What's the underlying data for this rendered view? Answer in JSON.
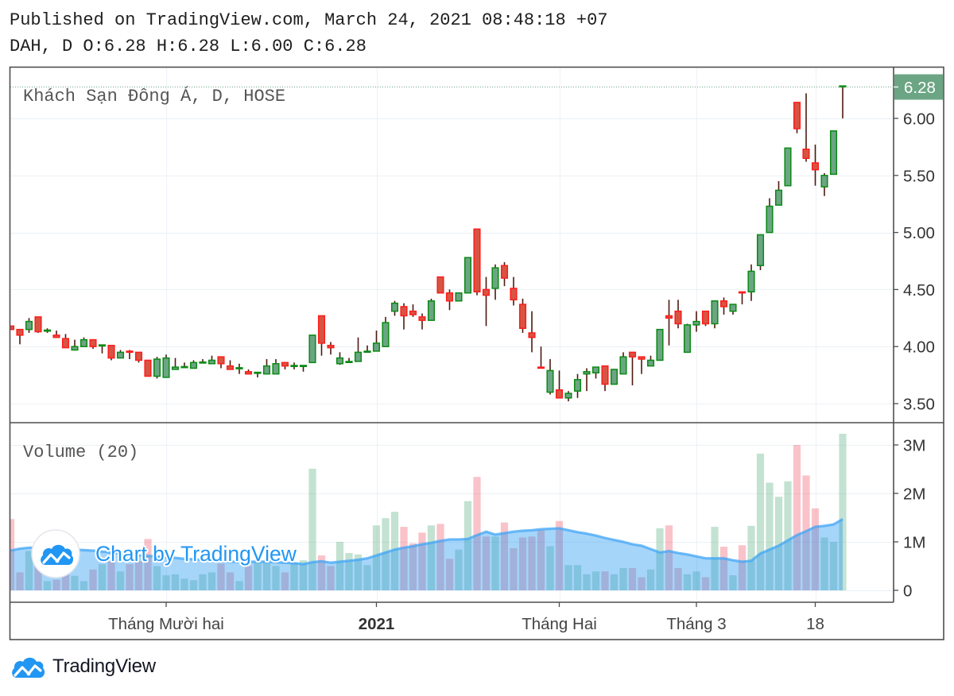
{
  "header": {
    "published": "Published on TradingView.com, March 24, 2021 08:48:18 +07",
    "symbol_interval": "DAH, D",
    "ohlc": [
      {
        "label": "O:",
        "value": "6.28"
      },
      {
        "label": "H:",
        "value": "6.28"
      },
      {
        "label": "L:",
        "value": "6.00"
      },
      {
        "label": "C:",
        "value": "6.28"
      }
    ]
  },
  "legend": {
    "main": "Khách Sạn Đông Á, D, HOSE",
    "volume": "Volume (20)"
  },
  "price_axis": {
    "labels": [
      "6.00",
      "5.50",
      "5.00",
      "4.50",
      "4.00",
      "3.50"
    ],
    "values": [
      6.0,
      5.5,
      5.0,
      4.5,
      4.0,
      3.5
    ],
    "last_price_label": "6.28",
    "last_price": 6.28
  },
  "volume_axis": {
    "labels": [
      "3M",
      "2M",
      "1M",
      "0"
    ],
    "values": [
      3,
      2,
      1,
      0
    ]
  },
  "time_axis": {
    "labels": [
      {
        "text": "Tháng Mười hai",
        "index": 17,
        "bold": false
      },
      {
        "text": "2021",
        "index": 40,
        "bold": true
      },
      {
        "text": "Tháng Hai",
        "index": 60,
        "bold": false
      },
      {
        "text": "Tháng 3",
        "index": 75,
        "bold": false
      },
      {
        "text": "18",
        "index": 88,
        "bold": false
      }
    ]
  },
  "watermark": {
    "text": "Chart by TradingView"
  },
  "footer": {
    "brand": "TradingView"
  },
  "colors": {
    "up_body": "#6ba583",
    "up_border": "#0b8a14",
    "down_body": "#d75442",
    "down_border": "#ff1c1c",
    "wick": "#4d1a10",
    "volume_up": "rgba(104,183,141,0.4)",
    "volume_down": "rgba(239,83,100,0.35)",
    "volume_ma_fill": "rgba(33,150,243,0.4)",
    "volume_ma_line": "rgba(66,165,245,0.75)",
    "last_price": "#6ba583",
    "grid": "#eef2f6",
    "frame": "#4f4f4f",
    "axis_text": "#333333",
    "legend_text": "#555555",
    "brand_blue": "#2196f3"
  },
  "chart_data": [
    {
      "type": "bar",
      "subtype": "candlestick",
      "title": "Khách Sạn Đông Á, D, HOSE",
      "symbol": "DAH",
      "exchange": "HOSE",
      "interval": "D",
      "xlabel": "",
      "ylabel": "",
      "ylim": [
        3.34,
        6.45
      ],
      "yticks": [
        3.5,
        4.0,
        4.5,
        5.0,
        5.5,
        6.0
      ],
      "xticks": [
        {
          "label": "Tháng Mười hai",
          "index": 17
        },
        {
          "label": "2021",
          "index": 40
        },
        {
          "label": "Tháng Hai",
          "index": 60
        },
        {
          "label": "Tháng 3",
          "index": 75
        },
        {
          "label": "18",
          "index": 88
        }
      ],
      "grid": true,
      "legend_position": "top-left",
      "last_price": 6.28,
      "ohlc_fields": [
        "open",
        "high",
        "low",
        "close"
      ],
      "ohlc": [
        [
          4.18,
          4.18,
          4.15,
          4.15
        ],
        [
          4.15,
          4.15,
          4.02,
          4.1
        ],
        [
          4.15,
          4.25,
          4.12,
          4.22
        ],
        [
          4.26,
          4.26,
          4.12,
          4.13
        ],
        [
          4.14,
          4.16,
          4.12,
          4.14
        ],
        [
          4.1,
          4.14,
          4.08,
          4.08
        ],
        [
          4.07,
          4.11,
          3.99,
          3.99
        ],
        [
          3.97,
          4.06,
          3.97,
          4.0
        ],
        [
          4.0,
          4.08,
          4.0,
          4.06
        ],
        [
          4.06,
          4.06,
          3.98,
          4.0
        ],
        [
          4.01,
          4.01,
          3.94,
          4.01
        ],
        [
          4.01,
          4.01,
          3.88,
          3.9
        ],
        [
          3.9,
          3.97,
          3.9,
          3.95
        ],
        [
          3.96,
          3.97,
          3.89,
          3.95
        ],
        [
          3.95,
          3.95,
          3.86,
          3.88
        ],
        [
          3.88,
          3.88,
          3.74,
          3.74
        ],
        [
          3.74,
          3.91,
          3.72,
          3.89
        ],
        [
          3.73,
          3.93,
          3.73,
          3.9
        ],
        [
          3.8,
          3.9,
          3.8,
          3.82
        ],
        [
          3.82,
          3.86,
          3.82,
          3.82
        ],
        [
          3.81,
          3.88,
          3.81,
          3.86
        ],
        [
          3.86,
          3.89,
          3.86,
          3.86
        ],
        [
          3.85,
          3.92,
          3.85,
          3.88
        ],
        [
          3.91,
          3.91,
          3.81,
          3.85
        ],
        [
          3.83,
          3.88,
          3.8,
          3.8
        ],
        [
          3.81,
          3.85,
          3.76,
          3.81
        ],
        [
          3.78,
          3.8,
          3.76,
          3.76
        ],
        [
          3.77,
          3.77,
          3.73,
          3.77
        ],
        [
          3.76,
          3.89,
          3.76,
          3.83
        ],
        [
          3.76,
          3.89,
          3.76,
          3.85
        ],
        [
          3.86,
          3.86,
          3.8,
          3.83
        ],
        [
          3.83,
          3.86,
          3.8,
          3.83
        ],
        [
          3.83,
          3.83,
          3.78,
          3.83
        ],
        [
          3.86,
          4.1,
          3.86,
          4.1
        ],
        [
          4.27,
          4.27,
          3.92,
          4.03
        ],
        [
          4.01,
          4.04,
          3.93,
          3.99
        ],
        [
          3.85,
          3.95,
          3.84,
          3.9
        ],
        [
          3.86,
          3.9,
          3.86,
          3.87
        ],
        [
          3.87,
          4.08,
          3.87,
          3.95
        ],
        [
          3.95,
          4.01,
          3.95,
          3.96
        ],
        [
          3.96,
          4.14,
          3.96,
          4.03
        ],
        [
          4.0,
          4.26,
          4.0,
          4.21
        ],
        [
          4.31,
          4.4,
          4.27,
          4.38
        ],
        [
          4.35,
          4.38,
          4.15,
          4.27
        ],
        [
          4.31,
          4.37,
          4.26,
          4.28
        ],
        [
          4.26,
          4.29,
          4.15,
          4.23
        ],
        [
          4.23,
          4.42,
          4.23,
          4.4
        ],
        [
          4.61,
          4.61,
          4.47,
          4.47
        ],
        [
          4.47,
          4.5,
          4.32,
          4.4
        ],
        [
          4.4,
          4.47,
          4.4,
          4.47
        ],
        [
          4.47,
          4.78,
          4.47,
          4.78
        ],
        [
          5.03,
          5.03,
          4.45,
          4.48
        ],
        [
          4.5,
          4.61,
          4.18,
          4.45
        ],
        [
          4.51,
          4.72,
          4.41,
          4.69
        ],
        [
          4.71,
          4.74,
          4.53,
          4.6
        ],
        [
          4.51,
          4.61,
          4.36,
          4.41
        ],
        [
          4.37,
          4.42,
          4.12,
          4.16
        ],
        [
          4.12,
          4.31,
          3.95,
          4.08
        ],
        [
          3.82,
          4.0,
          3.81,
          3.81
        ],
        [
          3.6,
          3.89,
          3.58,
          3.79
        ],
        [
          3.62,
          3.79,
          3.55,
          3.55
        ],
        [
          3.55,
          3.61,
          3.52,
          3.59
        ],
        [
          3.61,
          3.76,
          3.55,
          3.71
        ],
        [
          3.76,
          3.81,
          3.61,
          3.78
        ],
        [
          3.77,
          3.82,
          3.72,
          3.82
        ],
        [
          3.83,
          3.83,
          3.61,
          3.67
        ],
        [
          3.67,
          3.8,
          3.67,
          3.8
        ],
        [
          3.76,
          3.95,
          3.76,
          3.91
        ],
        [
          3.95,
          3.95,
          3.66,
          3.91
        ],
        [
          3.91,
          3.91,
          3.76,
          3.89
        ],
        [
          3.83,
          3.92,
          3.83,
          3.88
        ],
        [
          3.88,
          4.15,
          3.88,
          4.15
        ],
        [
          4.27,
          4.41,
          4.01,
          4.25
        ],
        [
          4.31,
          4.41,
          4.16,
          4.2
        ],
        [
          3.95,
          4.2,
          3.95,
          4.19
        ],
        [
          4.19,
          4.31,
          4.13,
          4.22
        ],
        [
          4.31,
          4.31,
          4.18,
          4.2
        ],
        [
          4.2,
          4.4,
          4.16,
          4.4
        ],
        [
          4.4,
          4.43,
          4.28,
          4.35
        ],
        [
          4.31,
          4.37,
          4.28,
          4.37
        ],
        [
          4.48,
          4.48,
          4.37,
          4.47
        ],
        [
          4.48,
          4.72,
          4.4,
          4.66
        ],
        [
          4.71,
          4.98,
          4.67,
          4.98
        ],
        [
          5.0,
          5.3,
          5.0,
          5.23
        ],
        [
          5.24,
          5.45,
          5.24,
          5.37
        ],
        [
          5.41,
          5.74,
          5.41,
          5.74
        ],
        [
          6.14,
          6.14,
          5.87,
          5.91
        ],
        [
          5.73,
          6.22,
          5.62,
          5.65
        ],
        [
          5.61,
          5.77,
          5.41,
          5.55
        ],
        [
          5.4,
          5.52,
          5.32,
          5.5
        ],
        [
          5.51,
          5.89,
          5.51,
          5.89
        ],
        [
          6.28,
          6.28,
          6.0,
          6.28
        ]
      ]
    },
    {
      "type": "bar",
      "title": "Volume (20)",
      "units": "M",
      "ylim": [
        -0.23,
        3.44
      ],
      "yticks": [
        0,
        1,
        2,
        3
      ],
      "ytick_labels": [
        "0",
        "1M",
        "2M",
        "3M"
      ],
      "grid": true,
      "series": [
        {
          "name": "Volume",
          "values": [
            1.47,
            0.37,
            0.81,
            0.55,
            0.19,
            0.22,
            0.33,
            0.3,
            0.19,
            0.43,
            0.54,
            0.6,
            0.39,
            0.54,
            0.6,
            1.06,
            0.5,
            0.31,
            0.33,
            0.24,
            0.21,
            0.33,
            0.37,
            0.55,
            0.37,
            0.19,
            0.5,
            0.6,
            0.62,
            0.5,
            0.37,
            0.57,
            0.62,
            2.51,
            0.72,
            0.5,
            1.0,
            0.77,
            0.74,
            0.52,
            1.34,
            1.49,
            1.62,
            1.31,
            0.97,
            1.19,
            1.34,
            1.37,
            0.65,
            0.84,
            1.84,
            2.34,
            1.11,
            1.11,
            1.4,
            0.87,
            1.09,
            1.11,
            1.24,
            0.91,
            1.43,
            0.52,
            0.52,
            0.33,
            0.39,
            0.39,
            0.33,
            0.46,
            0.46,
            0.27,
            0.43,
            1.28,
            1.34,
            0.46,
            0.33,
            0.39,
            0.27,
            1.31,
            0.9,
            0.31,
            0.93,
            1.33,
            2.82,
            2.22,
            1.93,
            2.25,
            3.0,
            2.37,
            1.69,
            1.09,
            1.0,
            3.23
          ]
        },
        {
          "name": "Volume MA (20)",
          "type": "area",
          "values": [
            0.82,
            0.86,
            0.88,
            0.88,
            0.87,
            0.86,
            0.85,
            0.84,
            0.83,
            0.82,
            0.8,
            0.78,
            0.76,
            0.74,
            0.72,
            0.71,
            0.7,
            0.68,
            0.67,
            0.65,
            0.64,
            0.63,
            0.61,
            0.6,
            0.59,
            0.59,
            0.59,
            0.59,
            0.59,
            0.58,
            0.57,
            0.56,
            0.54,
            0.58,
            0.6,
            0.57,
            0.59,
            0.61,
            0.63,
            0.66,
            0.72,
            0.78,
            0.84,
            0.88,
            0.91,
            0.95,
            0.98,
            1.02,
            1.05,
            1.05,
            1.06,
            1.14,
            1.21,
            1.15,
            1.18,
            1.21,
            1.23,
            1.24,
            1.26,
            1.27,
            1.28,
            1.24,
            1.2,
            1.17,
            1.13,
            1.08,
            1.04,
            1.0,
            0.95,
            0.92,
            0.85,
            0.78,
            0.81,
            0.77,
            0.74,
            0.7,
            0.66,
            0.66,
            0.66,
            0.62,
            0.59,
            0.61,
            0.76,
            0.84,
            0.92,
            1.03,
            1.14,
            1.22,
            1.31,
            1.33,
            1.36,
            1.47
          ]
        }
      ]
    }
  ]
}
